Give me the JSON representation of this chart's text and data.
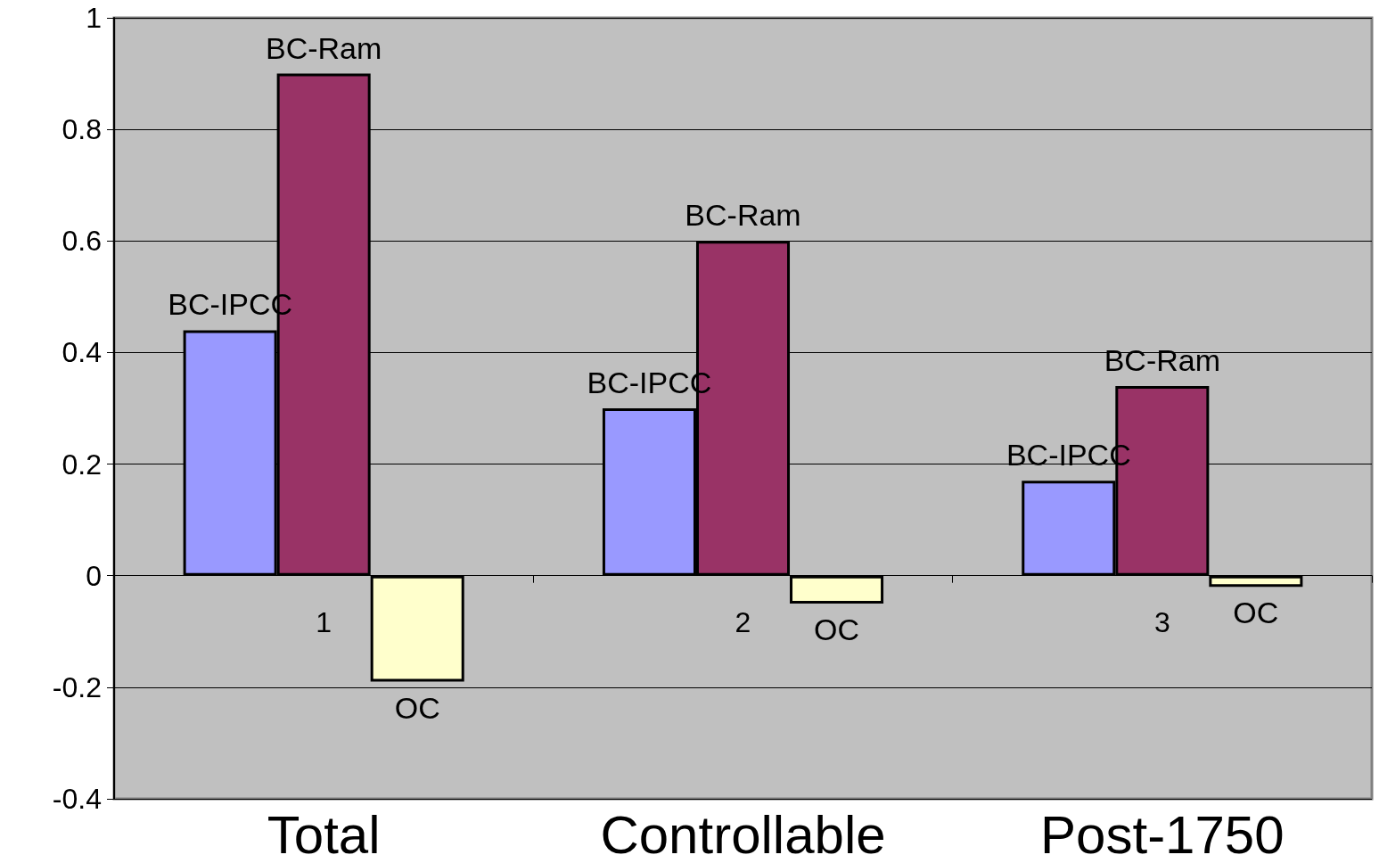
{
  "chart_data": {
    "type": "bar",
    "categories": [
      "1",
      "2",
      "3"
    ],
    "series": [
      {
        "name": "BC-IPCC",
        "color": "#9999ff",
        "values": [
          0.44,
          0.3,
          0.17
        ]
      },
      {
        "name": "BC-Ram",
        "color": "#993366",
        "values": [
          0.9,
          0.6,
          0.34
        ]
      },
      {
        "name": "OC",
        "color": "#ffffcc",
        "values": [
          -0.19,
          -0.05,
          -0.02
        ]
      }
    ],
    "annotations": [
      "Total",
      "Controllable",
      "Post-1750"
    ],
    "ylim": [
      -0.4,
      1
    ],
    "yticks": [
      -0.4,
      -0.2,
      0,
      0.2,
      0.4,
      0.6,
      0.8,
      1
    ],
    "grid": "y"
  }
}
